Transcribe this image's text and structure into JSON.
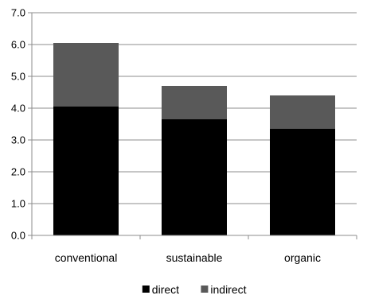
{
  "chart_data": {
    "type": "bar",
    "stacked": true,
    "categories": [
      "conventional",
      "sustainable",
      "organic"
    ],
    "series": [
      {
        "name": "direct",
        "values": [
          4.05,
          3.65,
          3.35
        ],
        "color": "#000000"
      },
      {
        "name": "indirect",
        "values": [
          2.0,
          1.05,
          1.05
        ],
        "color": "#595959"
      }
    ],
    "y_ticks": [
      "0.0",
      "1.0",
      "2.0",
      "3.0",
      "4.0",
      "5.0",
      "6.0",
      "7.0"
    ],
    "ylim": [
      0,
      7
    ],
    "grid": true,
    "legend_position": "bottom",
    "title": "",
    "xlabel": "",
    "ylabel": ""
  }
}
